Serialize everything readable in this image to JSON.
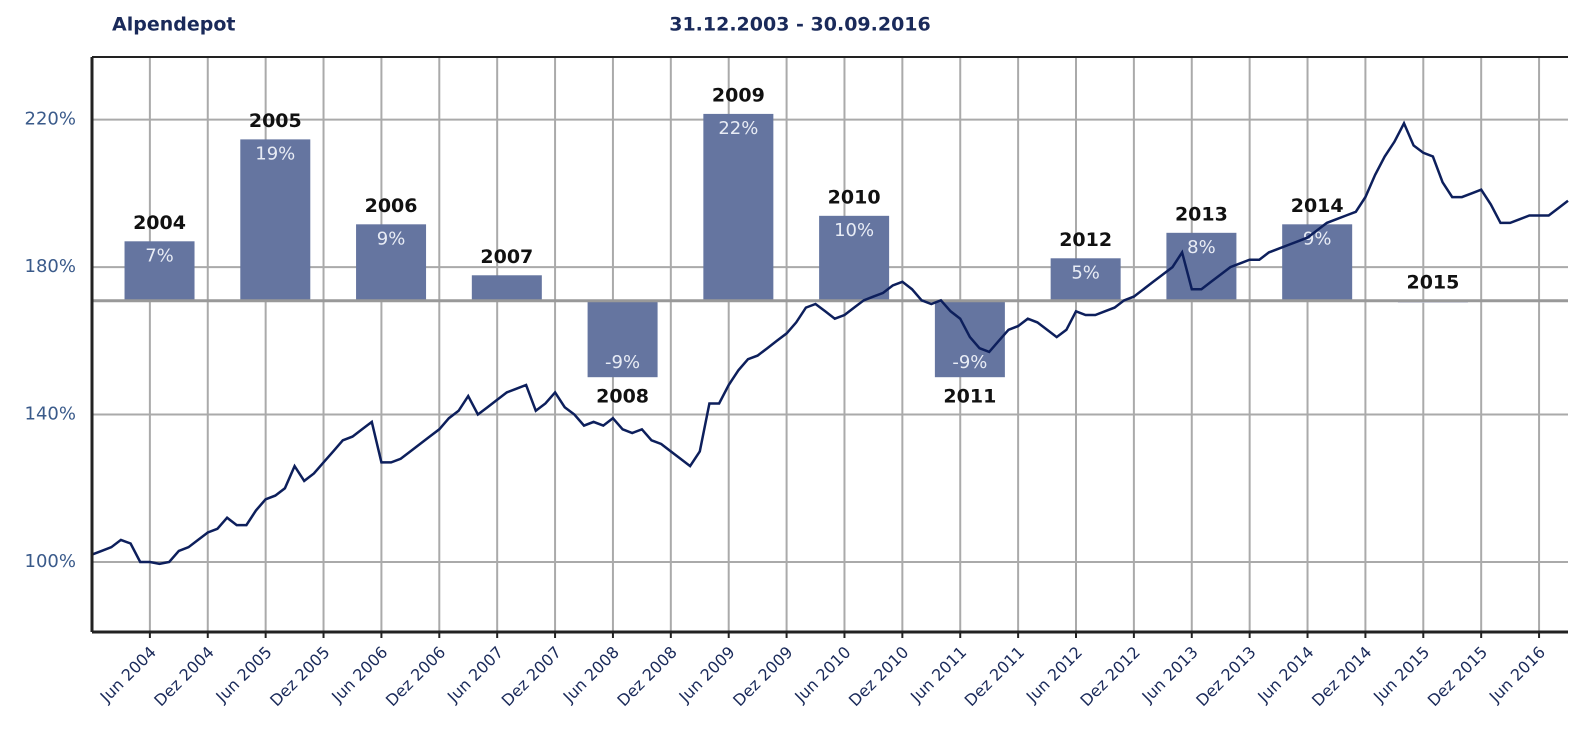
{
  "chart_data": [
    {
      "type": "line",
      "title": "Alpendepot",
      "subtitle": "31.12.2003 - 30.09.2016",
      "color": "#0d1f5c",
      "grid": true,
      "ylim": [
        81,
        237
      ],
      "yticks": [
        {
          "value": 100,
          "label": "100%"
        },
        {
          "value": 140,
          "label": "140%"
        },
        {
          "value": 180,
          "label": "180%"
        },
        {
          "value": 220,
          "label": "220%"
        }
      ],
      "xticks": [
        {
          "value": "2004-06",
          "label": "Jun 2004"
        },
        {
          "value": "2004-12",
          "label": "Dez 2004"
        },
        {
          "value": "2005-06",
          "label": "Jun 2005"
        },
        {
          "value": "2005-12",
          "label": "Dez 2005"
        },
        {
          "value": "2006-06",
          "label": "Jun 2006"
        },
        {
          "value": "2006-12",
          "label": "Dez 2006"
        },
        {
          "value": "2007-06",
          "label": "Jun 2007"
        },
        {
          "value": "2007-12",
          "label": "Dez 2007"
        },
        {
          "value": "2008-06",
          "label": "Jun 2008"
        },
        {
          "value": "2008-12",
          "label": "Dez 2008"
        },
        {
          "value": "2009-06",
          "label": "Jun 2009"
        },
        {
          "value": "2009-12",
          "label": "Dez 2009"
        },
        {
          "value": "2010-06",
          "label": "Jun 2010"
        },
        {
          "value": "2010-12",
          "label": "Dez 2010"
        },
        {
          "value": "2011-06",
          "label": "Jun 2011"
        },
        {
          "value": "2011-12",
          "label": "Dez 2011"
        },
        {
          "value": "2012-06",
          "label": "Jun 2012"
        },
        {
          "value": "2012-12",
          "label": "Dez 2012"
        },
        {
          "value": "2013-06",
          "label": "Jun 2013"
        },
        {
          "value": "2013-12",
          "label": "Dez 2013"
        },
        {
          "value": "2014-06",
          "label": "Jun 2014"
        },
        {
          "value": "2014-12",
          "label": "Dez 2014"
        },
        {
          "value": "2015-06",
          "label": "Jun 2015"
        },
        {
          "value": "2015-12",
          "label": "Dez 2015"
        },
        {
          "value": "2016-06",
          "label": "Jun 2016"
        }
      ],
      "x": [
        "2003-12",
        "2004-01",
        "2004-02",
        "2004-03",
        "2004-04",
        "2004-05",
        "2004-06",
        "2004-07",
        "2004-08",
        "2004-09",
        "2004-10",
        "2004-11",
        "2004-12",
        "2005-01",
        "2005-02",
        "2005-03",
        "2005-04",
        "2005-05",
        "2005-06",
        "2005-07",
        "2005-08",
        "2005-09",
        "2005-10",
        "2005-11",
        "2005-12",
        "2006-01",
        "2006-02",
        "2006-03",
        "2006-04",
        "2006-05",
        "2006-06",
        "2006-07",
        "2006-08",
        "2006-09",
        "2006-10",
        "2006-11",
        "2006-12",
        "2007-01",
        "2007-02",
        "2007-03",
        "2007-04",
        "2007-05",
        "2007-06",
        "2007-07",
        "2007-08",
        "2007-09",
        "2007-10",
        "2007-11",
        "2007-12",
        "2008-01",
        "2008-02",
        "2008-03",
        "2008-04",
        "2008-05",
        "2008-06",
        "2008-07",
        "2008-08",
        "2008-09",
        "2008-10",
        "2008-11",
        "2008-12",
        "2009-01",
        "2009-02",
        "2009-03",
        "2009-04",
        "2009-05",
        "2009-06",
        "2009-07",
        "2009-08",
        "2009-09",
        "2009-10",
        "2009-11",
        "2009-12",
        "2010-01",
        "2010-02",
        "2010-03",
        "2010-04",
        "2010-05",
        "2010-06",
        "2010-07",
        "2010-08",
        "2010-09",
        "2010-10",
        "2010-11",
        "2010-12",
        "2011-01",
        "2011-02",
        "2011-03",
        "2011-04",
        "2011-05",
        "2011-06",
        "2011-07",
        "2011-08",
        "2011-09",
        "2011-10",
        "2011-11",
        "2011-12",
        "2012-01",
        "2012-02",
        "2012-03",
        "2012-04",
        "2012-05",
        "2012-06",
        "2012-07",
        "2012-08",
        "2012-09",
        "2012-10",
        "2012-11",
        "2012-12",
        "2013-01",
        "2013-02",
        "2013-03",
        "2013-04",
        "2013-05",
        "2013-06",
        "2013-07",
        "2013-08",
        "2013-09",
        "2013-10",
        "2013-11",
        "2013-12",
        "2014-01",
        "2014-02",
        "2014-03",
        "2014-04",
        "2014-05",
        "2014-06",
        "2014-07",
        "2014-08",
        "2014-09",
        "2014-10",
        "2014-11",
        "2014-12",
        "2015-01",
        "2015-02",
        "2015-03",
        "2015-04",
        "2015-05",
        "2015-06",
        "2015-07",
        "2015-08",
        "2015-09",
        "2015-10",
        "2015-11",
        "2015-12",
        "2016-01",
        "2016-02",
        "2016-03",
        "2016-04",
        "2016-05",
        "2016-06",
        "2016-07",
        "2016-08",
        "2016-09"
      ],
      "values": [
        102,
        103,
        104,
        106,
        105,
        100,
        100,
        99.5,
        100,
        103,
        104,
        106,
        108,
        109,
        112,
        110,
        110,
        114,
        117,
        118,
        120,
        126,
        122,
        124,
        127,
        130,
        133,
        134,
        136,
        138,
        127,
        127,
        128,
        130,
        132,
        134,
        136,
        139,
        141,
        145,
        140,
        142,
        144,
        146,
        147,
        148,
        141,
        143,
        146,
        142,
        140,
        137,
        138,
        137,
        139,
        136,
        135,
        136,
        133,
        132,
        130,
        128,
        126,
        130,
        143,
        143,
        148,
        152,
        155,
        156,
        158,
        160,
        162,
        165,
        169,
        170,
        168,
        166,
        167,
        169,
        171,
        172,
        173,
        175,
        176,
        174,
        171,
        170,
        171,
        168,
        166,
        161,
        158,
        157,
        160,
        163,
        164,
        166,
        165,
        163,
        161,
        163,
        168,
        167,
        167,
        168,
        169,
        171,
        172,
        174,
        176,
        178,
        180,
        184,
        174,
        174,
        176,
        178,
        180,
        181,
        182,
        182,
        184,
        185,
        186,
        187,
        188,
        190,
        192,
        193,
        194,
        195,
        199,
        205,
        210,
        214,
        219,
        213,
        211,
        210,
        203,
        199,
        199,
        200,
        201,
        197,
        192,
        192,
        193,
        194,
        194,
        194,
        196,
        198
      ]
    },
    {
      "type": "bar",
      "color": "#6575a0",
      "ylim": [
        -39,
        28.7
      ],
      "categories": [
        "2004",
        "2005",
        "2006",
        "2007",
        "2008",
        "2009",
        "2010",
        "2011",
        "2012",
        "2013",
        "2014",
        "2015"
      ],
      "values": [
        7,
        19,
        9,
        3,
        -9,
        22,
        10,
        -9,
        5,
        8,
        9,
        0
      ],
      "value_labels": [
        "7%",
        "19%",
        "9%",
        null,
        "-9%",
        "22%",
        "10%",
        "-9%",
        "5%",
        "8%",
        "9%",
        null
      ]
    }
  ]
}
